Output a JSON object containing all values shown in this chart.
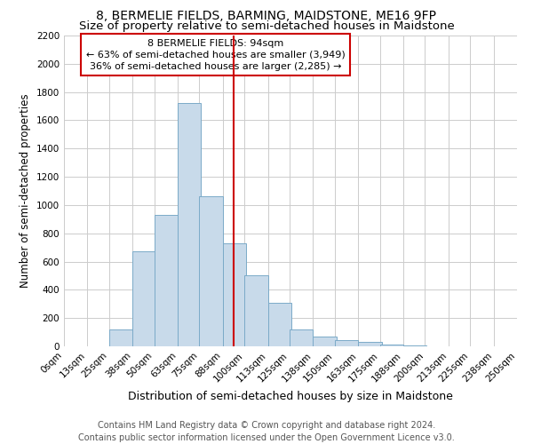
{
  "title1": "8, BERMELIE FIELDS, BARMING, MAIDSTONE, ME16 9FP",
  "title2": "Size of property relative to semi-detached houses in Maidstone",
  "xlabel": "Distribution of semi-detached houses by size in Maidstone",
  "ylabel": "Number of semi-detached properties",
  "footnote": "Contains HM Land Registry data © Crown copyright and database right 2024.\nContains public sector information licensed under the Open Government Licence v3.0.",
  "bar_left_edges": [
    0,
    13,
    25,
    38,
    50,
    63,
    75,
    88,
    100,
    113,
    125,
    138,
    150,
    163,
    175,
    188,
    200,
    213,
    225,
    238
  ],
  "bar_heights": [
    0,
    0,
    120,
    670,
    930,
    1720,
    1060,
    730,
    500,
    310,
    120,
    70,
    45,
    30,
    10,
    5,
    0,
    0,
    0,
    0
  ],
  "bin_width": 13,
  "xtick_labels": [
    "0sqm",
    "13sqm",
    "25sqm",
    "38sqm",
    "50sqm",
    "63sqm",
    "75sqm",
    "88sqm",
    "100sqm",
    "113sqm",
    "125sqm",
    "138sqm",
    "150sqm",
    "163sqm",
    "175sqm",
    "188sqm",
    "200sqm",
    "213sqm",
    "225sqm",
    "238sqm",
    "250sqm"
  ],
  "bar_color": "#c8daea",
  "bar_edge_color": "#7baac8",
  "vline_x": 94,
  "vline_color": "#cc0000",
  "annotation_box_text": "8 BERMELIE FIELDS: 94sqm\n← 63% of semi-detached houses are smaller (3,949)\n36% of semi-detached houses are larger (2,285) →",
  "annotation_box_color": "#cc0000",
  "ylim": [
    0,
    2200
  ],
  "yticks": [
    0,
    200,
    400,
    600,
    800,
    1000,
    1200,
    1400,
    1600,
    1800,
    2000,
    2200
  ],
  "grid_color": "#cccccc",
  "title1_fontsize": 10,
  "title2_fontsize": 9.5,
  "xlabel_fontsize": 9,
  "ylabel_fontsize": 8.5,
  "tick_fontsize": 7.5,
  "footnote_fontsize": 7,
  "annot_fontsize": 8
}
